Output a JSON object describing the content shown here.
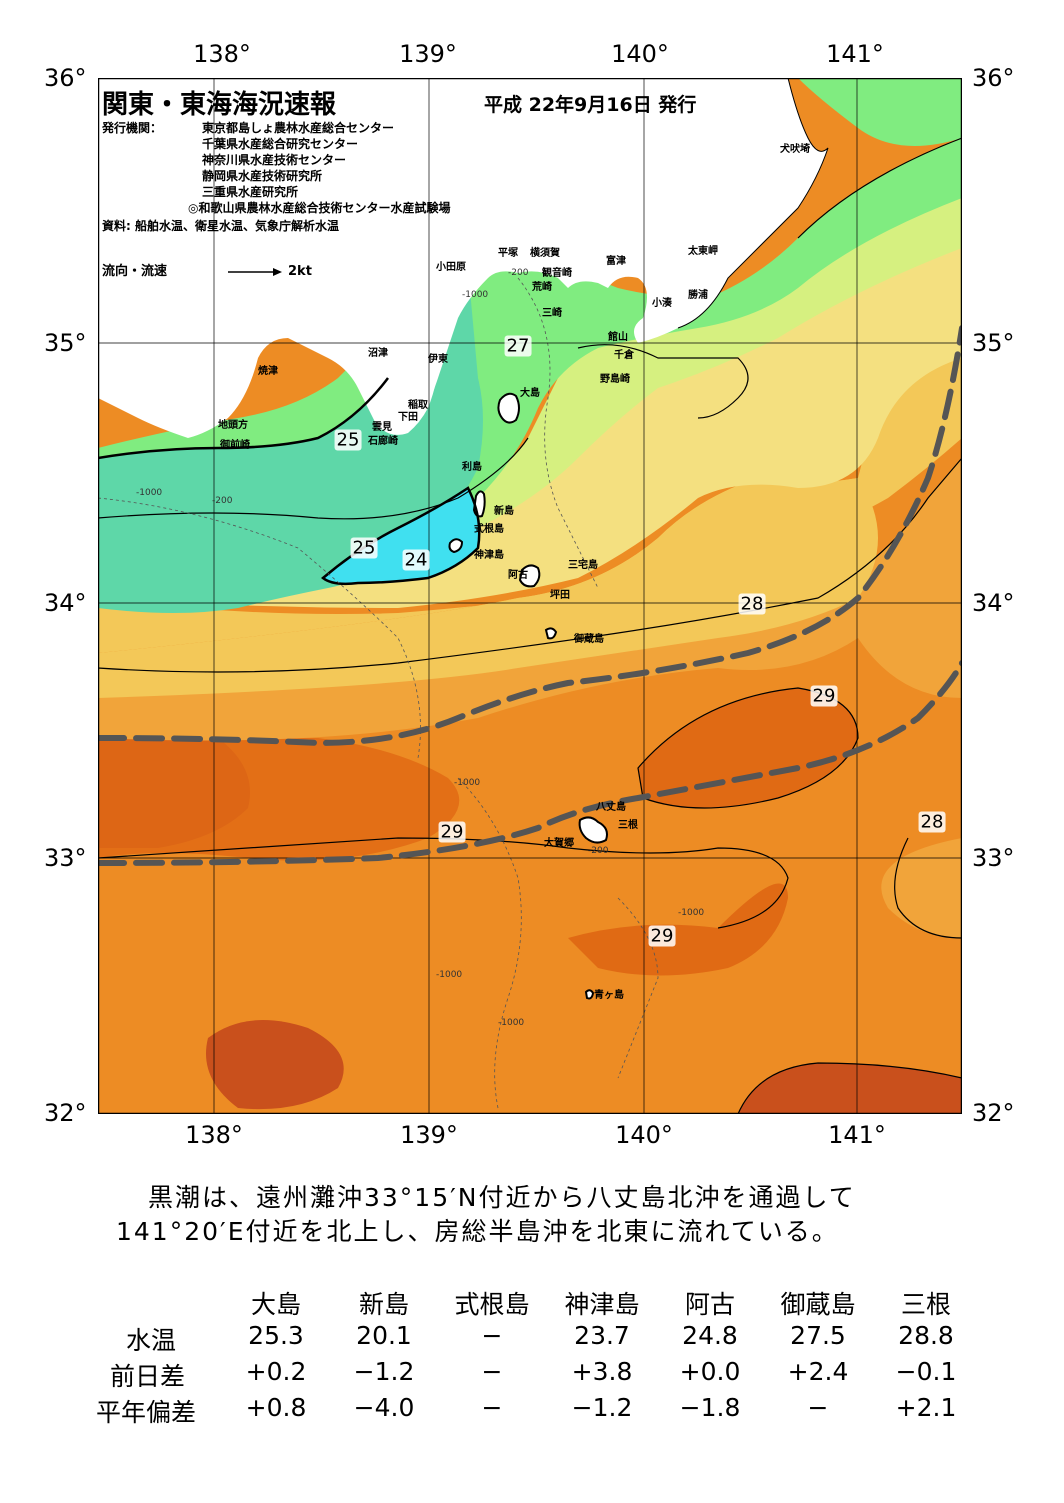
{
  "title": "関東・東海海況速報",
  "issue_date": "平成 22年9月16日 発行",
  "agencies": {
    "label": "発行機関：",
    "items": [
      "東京都島しょ農林水産総合センター",
      "千葉県水産総合研究センター",
      "神奈川県水産技術センター",
      "静岡県水産技術研究所",
      "三重県水産研究所",
      "◎和歌山県農林水産総合技術センター水産試験場"
    ],
    "source": "資料: 船舶水温、衛星水温、気象庁解析水温"
  },
  "flow_legend": {
    "label": "流向・流速",
    "unit": "2kt"
  },
  "axes": {
    "lon_ticks": [
      "138°",
      "139°",
      "140°",
      "141°"
    ],
    "lat_ticks": [
      "36°",
      "35°",
      "34°",
      "33°",
      "32°"
    ]
  },
  "place_names": [
    "犬吠埼",
    "太東岬",
    "勝浦",
    "小湊",
    "富津",
    "横須賀",
    "観音崎",
    "平塚",
    "小田原",
    "荒崎",
    "三崎",
    "館山",
    "千倉",
    "野島崎",
    "沼津",
    "伊東",
    "焼津",
    "稲取",
    "下田",
    "雲見",
    "石廊崎",
    "地頭方",
    "御前崎",
    "大島",
    "利島",
    "新島",
    "式根島",
    "神津島",
    "三宅島",
    "阿古",
    "坪田",
    "御蔵島",
    "八丈島",
    "三根",
    "大賀郷",
    "青ヶ島"
  ],
  "isotherm_labels": [
    "27",
    "25",
    "25",
    "24",
    "28",
    "29",
    "29",
    "29",
    "28"
  ],
  "depth_labels": [
    "-200",
    "-1000"
  ],
  "colors": {
    "t24": "#40e0f0",
    "t25": "#5ed7a8",
    "t26": "#80ec80",
    "t27": "#d6f080",
    "t27_5": "#f4e080",
    "t28": "#f3c858",
    "t28_5": "#f1a43a",
    "t29": "#ed8c24",
    "t29_5": "#e06a14",
    "t30": "#c9501c",
    "land": "#ffffff",
    "kuroshio_axis": "#555555"
  },
  "summary": {
    "line1": "黒潮は、遠州灘沖33°15′N付近から八丈島北沖を通過して",
    "line2": "141°20′E付近を北上し、房総半島沖を北東に流れている。"
  },
  "table": {
    "columns": [
      "大島",
      "新島",
      "式根島",
      "神津島",
      "阿古",
      "御蔵島",
      "三根"
    ],
    "rows": [
      {
        "label": "水温",
        "values": [
          "25.3",
          "20.1",
          "−",
          "23.7",
          "24.8",
          "27.5",
          "28.8"
        ]
      },
      {
        "label": "前日差",
        "values": [
          "+0.2",
          "−1.2",
          "−",
          "+3.8",
          "+0.0",
          "+2.4",
          "−0.1"
        ]
      },
      {
        "label": "平年偏差",
        "values": [
          "+0.8",
          "−4.0",
          "−",
          "−1.2",
          "−1.8",
          "−",
          "+2.1"
        ]
      }
    ]
  }
}
